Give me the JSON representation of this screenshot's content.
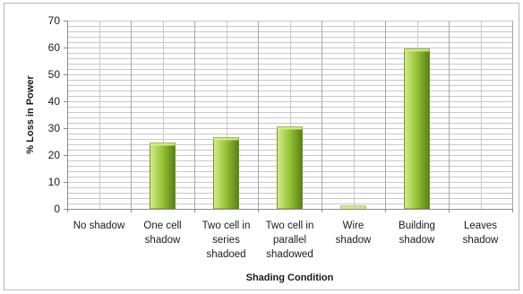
{
  "chart_data": {
    "type": "bar",
    "title": "",
    "xlabel": "Shading Condition",
    "ylabel": "% Loss in Power",
    "ylim": [
      0,
      70
    ],
    "yticks": [
      0,
      10,
      20,
      30,
      40,
      50,
      60,
      70
    ],
    "grid": true,
    "legend": "none",
    "categories": [
      [
        "No shadow"
      ],
      [
        "One cell",
        "shadow"
      ],
      [
        "Two cell in",
        "series",
        "shadoed"
      ],
      [
        "Two cell in",
        "parallel",
        "shadowed"
      ],
      [
        "Wire",
        "shadow"
      ],
      [
        "Building",
        "shadow"
      ],
      [
        "Leaves",
        "shadow"
      ]
    ],
    "values": [
      0,
      24.5,
      26.5,
      30.5,
      1,
      59.5,
      0
    ],
    "colors": {
      "bar_light": "#d4ec8a",
      "bar_mid": "#9bc83b",
      "bar_dark": "#5b7f14",
      "grid": "#c8c8c8",
      "axis": "#8c8c8c"
    }
  }
}
